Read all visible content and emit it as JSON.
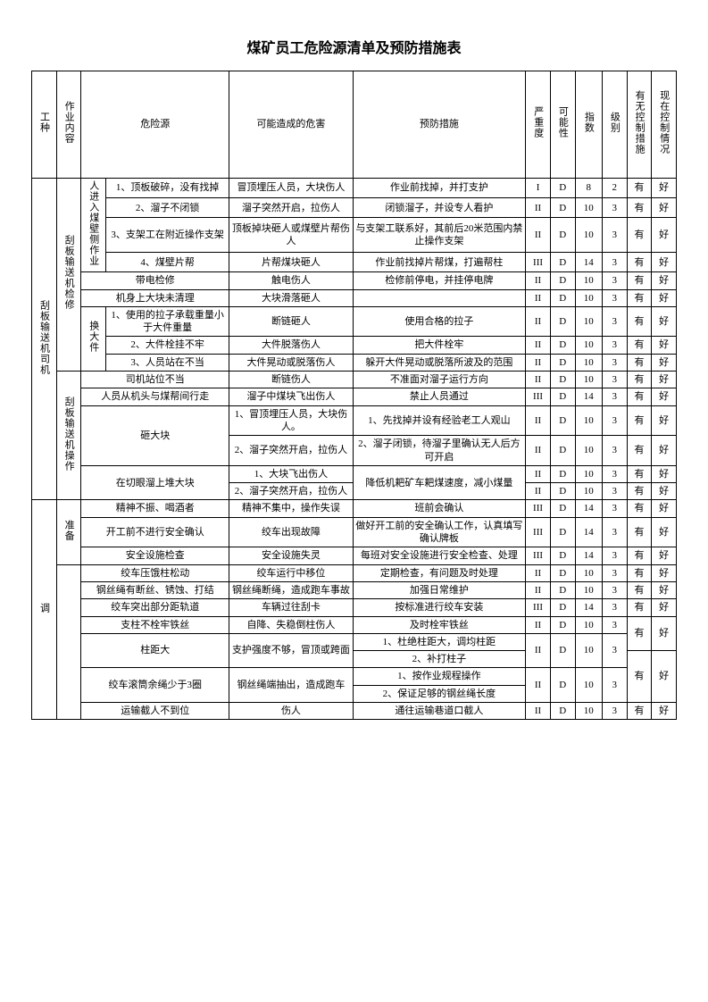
{
  "title": "煤矿员工危险源清单及预防措施表",
  "headers": {
    "h1": "工种",
    "h2": "作业内容",
    "h3": "危险源",
    "h4": "可能造成的危害",
    "h5": "预防措施",
    "h6": "严重度",
    "h7": "可能性",
    "h8": "指数",
    "h9": "级别",
    "h10": "有无控制措施",
    "h11": "现在控制情况"
  },
  "job1": "刮板输送机司机",
  "task1": "刮板输送机检修",
  "task1_sub1": "人进入煤壁侧作业",
  "r1_src": "1、顶板破碎，没有找掉",
  "r1_harm": "冒顶埋压人员，大块伤人",
  "r1_prev": "作业前找掉，并打支护",
  "r1_v": [
    "I",
    "D",
    "8",
    "2",
    "有",
    "好"
  ],
  "r2_src": "2、溜子不闭锁",
  "r2_harm": "溜子突然开启，拉伤人",
  "r2_prev": "闭锁溜子，并设专人看护",
  "r2_v": [
    "II",
    "D",
    "10",
    "3",
    "有",
    "好"
  ],
  "r3_src": "3、支架工在附近操作支架",
  "r3_harm": "顶板掉块砸人或煤壁片帮伤人",
  "r3_prev": "与支架工联系好，其前后20米范围内禁止操作支架",
  "r3_v": [
    "II",
    "D",
    "10",
    "3",
    "有",
    "好"
  ],
  "r4_src": "4、煤壁片帮",
  "r4_harm": "片帮煤块砸人",
  "r4_prev": "作业前找掉片帮煤，打遍帮柱",
  "r4_v": [
    "III",
    "D",
    "14",
    "3",
    "有",
    "好"
  ],
  "r5_src": "带电检修",
  "r5_harm": "触电伤人",
  "r5_prev": "检修前停电，并挂停电牌",
  "r5_v": [
    "II",
    "D",
    "10",
    "3",
    "有",
    "好"
  ],
  "r6_src": "机身上大块未清理",
  "r6_harm": "大块滑落砸人",
  "r6_prev": "",
  "r6_v": [
    "II",
    "D",
    "10",
    "3",
    "有",
    "好"
  ],
  "task1_sub2": "换大件",
  "r7_src": "1、使用的拉子承载重量小于大件重量",
  "r7_harm": "断链砸人",
  "r7_prev": "使用合格的拉子",
  "r7_v": [
    "II",
    "D",
    "10",
    "3",
    "有",
    "好"
  ],
  "r8_src": "2、大件栓挂不牢",
  "r8_harm": "大件脱落伤人",
  "r8_prev": "把大件栓牢",
  "r8_v": [
    "II",
    "D",
    "10",
    "3",
    "有",
    "好"
  ],
  "r9_src": "3、人员站在不当",
  "r9_harm": "大件晃动或脱落伤人",
  "r9_prev": "躲开大件晃动或脱落所波及的范围",
  "r9_v": [
    "II",
    "D",
    "10",
    "3",
    "有",
    "好"
  ],
  "task2": "刮板输送机操作",
  "r10_src": "司机站位不当",
  "r10_harm": "断链伤人",
  "r10_prev": "不准面对溜子运行方向",
  "r10_v": [
    "II",
    "D",
    "10",
    "3",
    "有",
    "好"
  ],
  "r11_src": "人员从机头与煤帮间行走",
  "r11_harm": "溜子中煤块飞出伤人",
  "r11_prev": "禁止人员通过",
  "r11_v": [
    "III",
    "D",
    "14",
    "3",
    "有",
    "好"
  ],
  "r12_src": "砸大块",
  "r12_harm": "1、冒顶埋压人员，大块伤人。",
  "r12_prev": "1、先找掉并设有经验老工人观山",
  "r12_v": [
    "II",
    "D",
    "10",
    "3",
    "有",
    "好"
  ],
  "r13_harm": "2、溜子突然开启，拉伤人",
  "r13_prev": "2、溜子闭锁，待溜子里确认无人后方可开启",
  "r13_v": [
    "II",
    "D",
    "10",
    "3",
    "有",
    "好"
  ],
  "r14_src": "在切眼溜上堆大块",
  "r14_harm": "1、大块飞出伤人",
  "r14_prev": "降低机耙矿车耙煤速度，减小煤量",
  "r14_v": [
    "II",
    "D",
    "10",
    "3",
    "有",
    "好"
  ],
  "r15_harm": "2、溜子突然开启，拉伤人",
  "r15_v": [
    "II",
    "D",
    "10",
    "3",
    "有",
    "好"
  ],
  "task3": "准备",
  "r16_src": "精神不振、喝酒者",
  "r16_harm": "精神不集中，操作失误",
  "r16_prev": "班前会确认",
  "r16_v": [
    "III",
    "D",
    "14",
    "3",
    "有",
    "好"
  ],
  "r17_src": "开工前不进行安全确认",
  "r17_harm": "绞车出现故障",
  "r17_prev": "做好开工前的安全确认工作，认真填写确认牌板",
  "r17_v": [
    "III",
    "D",
    "14",
    "3",
    "有",
    "好"
  ],
  "r18_src": "安全设施检查",
  "r18_harm": "安全设施失灵",
  "r18_prev": "每班对安全设施进行安全检查、处理",
  "r18_v": [
    "III",
    "D",
    "14",
    "3",
    "有",
    "好"
  ],
  "job2": "调",
  "r19_src": "绞车压饿柱松动",
  "r19_harm": "绞车运行中移位",
  "r19_prev": "定期检查，有问题及时处理",
  "r19_v": [
    "II",
    "D",
    "10",
    "3",
    "有",
    "好"
  ],
  "r20_src": "钢丝绳有断丝、锈蚀、打结",
  "r20_harm": "钢丝绳断绳，造成跑车事故",
  "r20_prev": "加强日常维护",
  "r20_v": [
    "II",
    "D",
    "10",
    "3",
    "有",
    "好"
  ],
  "r21_src": "绞车突出部分距轨道",
  "r21_harm": "车辆过往刮卡",
  "r21_prev": "按标准进行绞车安装",
  "r21_v": [
    "III",
    "D",
    "14",
    "3",
    "有",
    "好"
  ],
  "r22_src": "支柱不栓牢铁丝",
  "r22_harm": "自降、失稳倒柱伤人",
  "r22_prev": "及时栓牢铁丝",
  "r22_v": [
    "II",
    "D",
    "10",
    "3"
  ],
  "r22_vh": [
    "有",
    "好"
  ],
  "r23_src": "柱距大",
  "r23_harm": "支护强度不够，冒顶或跨面",
  "r23_prev": "1、杜绝柱距大，调均柱距",
  "r23_v": [
    "II",
    "D",
    "10",
    "3"
  ],
  "r24_prev": "2、补打柱子",
  "r24_vh": [
    "有",
    "好"
  ],
  "r25_src": "绞车滚筒余绳少于3圈",
  "r25_harm": "钢丝绳端抽出，造成跑车",
  "r25_prev": "1、按作业规程操作",
  "r25_v": [
    "II",
    "D",
    "10",
    "3"
  ],
  "r26_prev": "2、保证足够的钢丝绳长度",
  "r27_src": "运输截人不到位",
  "r27_harm": "伤人",
  "r27_prev": "通往运输巷道口截人",
  "r27_v": [
    "II",
    "D",
    "10",
    "3",
    "有",
    "好"
  ]
}
